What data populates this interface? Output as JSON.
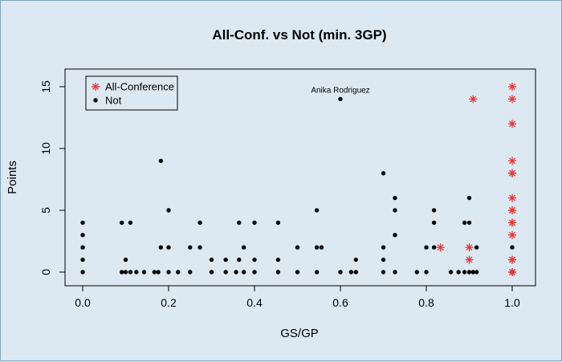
{
  "chart_data": {
    "type": "scatter",
    "title": "All-Conf. vs Not (min. 3GP)",
    "xlabel": "GS/GP",
    "ylabel": "Points",
    "xlim": [
      0,
      1
    ],
    "ylim": [
      0,
      15
    ],
    "x_ticks": [
      "0.0",
      "0.2",
      "0.4",
      "0.6",
      "0.8",
      "1.0"
    ],
    "y_ticks": [
      "0",
      "5",
      "10",
      "15"
    ],
    "grid": false,
    "legend_position": "top-left",
    "series": [
      {
        "name": "All-Conference",
        "marker": "asterisk",
        "color": "#ee3333",
        "points": [
          [
            0.833,
            2
          ],
          [
            0.9,
            2
          ],
          [
            0.9,
            1
          ],
          [
            0.909,
            14
          ],
          [
            1.0,
            15
          ],
          [
            1.0,
            14
          ],
          [
            1.0,
            12
          ],
          [
            1.0,
            9
          ],
          [
            1.0,
            8
          ],
          [
            1.0,
            8
          ],
          [
            1.0,
            6
          ],
          [
            1.0,
            5
          ],
          [
            1.0,
            5
          ],
          [
            1.0,
            4
          ],
          [
            1.0,
            4
          ],
          [
            1.0,
            3
          ],
          [
            1.0,
            1
          ],
          [
            1.0,
            1
          ],
          [
            1.0,
            0
          ],
          [
            1.0,
            0
          ]
        ]
      },
      {
        "name": "Not",
        "marker": "dot",
        "color": "#000000",
        "points": [
          [
            0,
            0
          ],
          [
            0,
            1
          ],
          [
            0,
            2
          ],
          [
            0,
            3
          ],
          [
            0,
            4
          ],
          [
            0.091,
            0
          ],
          [
            0.091,
            4
          ],
          [
            0.1,
            0
          ],
          [
            0.1,
            1
          ],
          [
            0.111,
            0
          ],
          [
            0.111,
            4
          ],
          [
            0.125,
            0
          ],
          [
            0.143,
            0
          ],
          [
            0.167,
            0
          ],
          [
            0.176,
            0
          ],
          [
            0.182,
            2
          ],
          [
            0.182,
            9
          ],
          [
            0.2,
            0
          ],
          [
            0.2,
            2
          ],
          [
            0.2,
            5
          ],
          [
            0.222,
            0
          ],
          [
            0.25,
            0
          ],
          [
            0.25,
            2
          ],
          [
            0.273,
            2
          ],
          [
            0.273,
            4
          ],
          [
            0.3,
            0
          ],
          [
            0.3,
            1
          ],
          [
            0.333,
            0
          ],
          [
            0.333,
            1
          ],
          [
            0.357,
            0
          ],
          [
            0.364,
            1
          ],
          [
            0.364,
            4
          ],
          [
            0.375,
            0
          ],
          [
            0.375,
            2
          ],
          [
            0.4,
            0
          ],
          [
            0.4,
            1
          ],
          [
            0.4,
            4
          ],
          [
            0.455,
            0
          ],
          [
            0.455,
            1
          ],
          [
            0.455,
            4
          ],
          [
            0.5,
            0
          ],
          [
            0.5,
            2
          ],
          [
            0.545,
            0
          ],
          [
            0.545,
            2
          ],
          [
            0.545,
            5
          ],
          [
            0.556,
            2
          ],
          [
            0.6,
            0
          ],
          [
            0.6,
            14
          ],
          [
            0.625,
            0
          ],
          [
            0.636,
            0
          ],
          [
            0.636,
            1
          ],
          [
            0.7,
            0
          ],
          [
            0.7,
            1
          ],
          [
            0.7,
            2
          ],
          [
            0.7,
            8
          ],
          [
            0.727,
            0
          ],
          [
            0.727,
            3
          ],
          [
            0.727,
            5
          ],
          [
            0.727,
            6
          ],
          [
            0.778,
            0
          ],
          [
            0.8,
            0
          ],
          [
            0.8,
            2
          ],
          [
            0.818,
            2
          ],
          [
            0.818,
            4
          ],
          [
            0.818,
            5
          ],
          [
            0.857,
            0
          ],
          [
            0.875,
            0
          ],
          [
            0.889,
            0
          ],
          [
            0.889,
            4
          ],
          [
            0.9,
            0
          ],
          [
            0.9,
            4
          ],
          [
            0.9,
            6
          ],
          [
            0.909,
            0
          ],
          [
            0.917,
            0
          ],
          [
            0.917,
            2
          ],
          [
            1.0,
            0
          ],
          [
            1.0,
            2
          ]
        ]
      }
    ],
    "annotations": [
      {
        "text": "Anika Rodriguez",
        "x": 0.6,
        "y": 14
      }
    ]
  }
}
